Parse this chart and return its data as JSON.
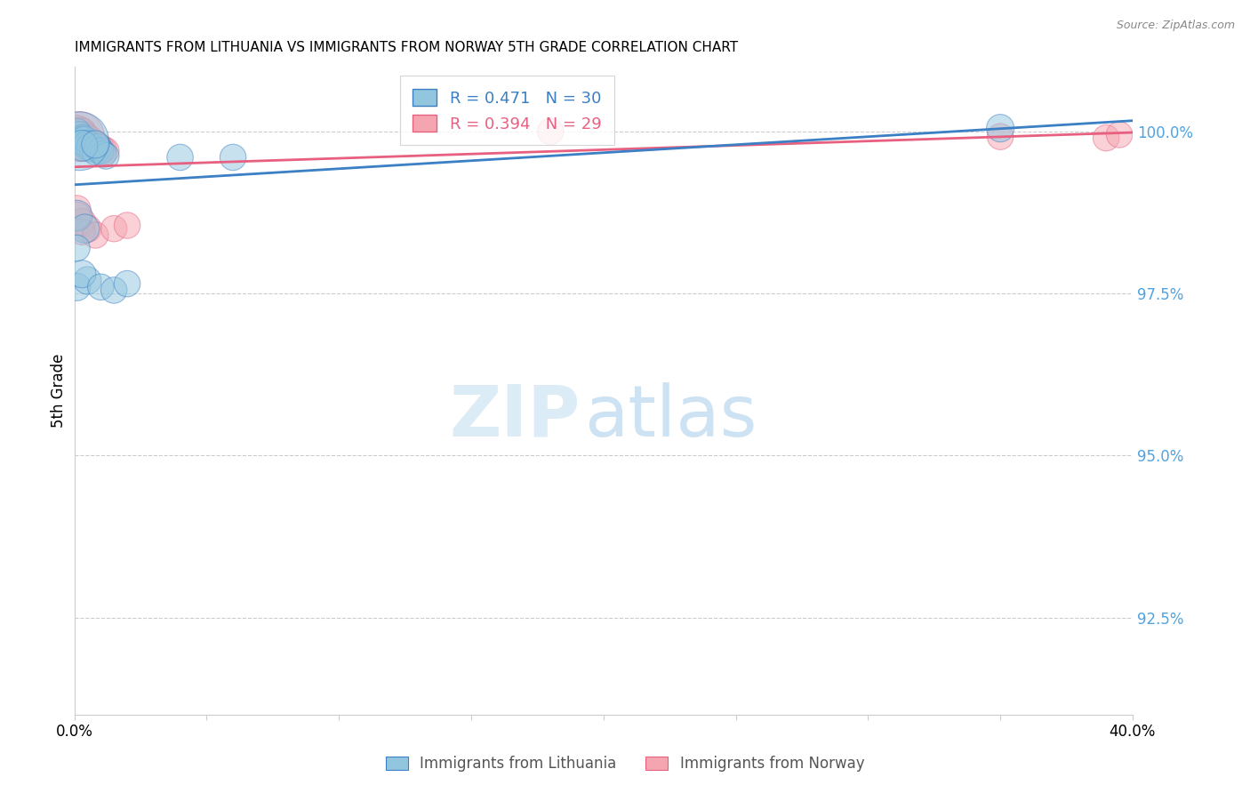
{
  "title": "IMMIGRANTS FROM LITHUANIA VS IMMIGRANTS FROM NORWAY 5TH GRADE CORRELATION CHART",
  "source": "Source: ZipAtlas.com",
  "ylabel": "5th Grade",
  "xlim": [
    0.0,
    0.4
  ],
  "ylim": [
    0.91,
    1.01
  ],
  "yticks": [
    0.925,
    0.95,
    0.975,
    1.0
  ],
  "ytick_labels": [
    "92.5%",
    "95.0%",
    "97.5%",
    "100.0%"
  ],
  "xticks": [
    0.0,
    0.05,
    0.1,
    0.15,
    0.2,
    0.25,
    0.3,
    0.35,
    0.4
  ],
  "legend_R1": "R = 0.471",
  "legend_N1": "N = 30",
  "legend_R2": "R = 0.394",
  "legend_N2": "N = 29",
  "color_lithuania": "#92C5DE",
  "color_norway": "#F4A5B0",
  "color_line_lithuania": "#3B7FC4",
  "color_line_norway": "#E86080",
  "color_ytick": "#4FA3E0",
  "lithuania_x": [
    0.001,
    0.002,
    0.003,
    0.003,
    0.004,
    0.005,
    0.005,
    0.006,
    0.006,
    0.007,
    0.008,
    0.009,
    0.01,
    0.011,
    0.012,
    0.002,
    0.003,
    0.008,
    0.001,
    0.004,
    0.001,
    0.005,
    0.003,
    0.01,
    0.015,
    0.02,
    0.001,
    0.04,
    0.06,
    0.35
  ],
  "lithuania_y": [
    1.0,
    0.9995,
    0.999,
    0.9985,
    0.9988,
    0.9982,
    0.9978,
    0.998,
    0.9975,
    0.9972,
    0.9968,
    0.9975,
    0.997,
    0.9965,
    0.9962,
    0.9985,
    0.9978,
    0.998,
    0.987,
    0.985,
    0.976,
    0.977,
    0.978,
    0.976,
    0.9755,
    0.9765,
    0.982,
    0.996,
    0.996,
    1.0005
  ],
  "lithuania_size": [
    18,
    18,
    18,
    22,
    18,
    18,
    22,
    18,
    20,
    18,
    18,
    20,
    18,
    18,
    18,
    90,
    25,
    20,
    25,
    22,
    20,
    20,
    20,
    18,
    18,
    18,
    18,
    18,
    18,
    20
  ],
  "norway_x": [
    0.001,
    0.002,
    0.003,
    0.003,
    0.004,
    0.004,
    0.005,
    0.006,
    0.006,
    0.007,
    0.008,
    0.009,
    0.01,
    0.011,
    0.012,
    0.002,
    0.004,
    0.001,
    0.003,
    0.005,
    0.003,
    0.008,
    0.015,
    0.02,
    0.001,
    0.18,
    0.35,
    0.39,
    0.395
  ],
  "norway_y": [
    1.0005,
    1.0003,
    1.0001,
    0.9998,
    0.9995,
    0.999,
    0.999,
    0.9988,
    0.9985,
    0.9982,
    0.998,
    0.9978,
    0.9975,
    0.9972,
    0.997,
    0.9992,
    0.9975,
    0.988,
    0.986,
    0.985,
    0.9845,
    0.984,
    0.985,
    0.9855,
    0.987,
    1.0,
    0.9992,
    0.999,
    0.9995
  ],
  "norway_size": [
    18,
    18,
    18,
    22,
    18,
    22,
    20,
    18,
    18,
    18,
    18,
    18,
    18,
    18,
    18,
    65,
    20,
    20,
    20,
    20,
    18,
    18,
    18,
    18,
    20,
    18,
    18,
    18,
    18
  ]
}
